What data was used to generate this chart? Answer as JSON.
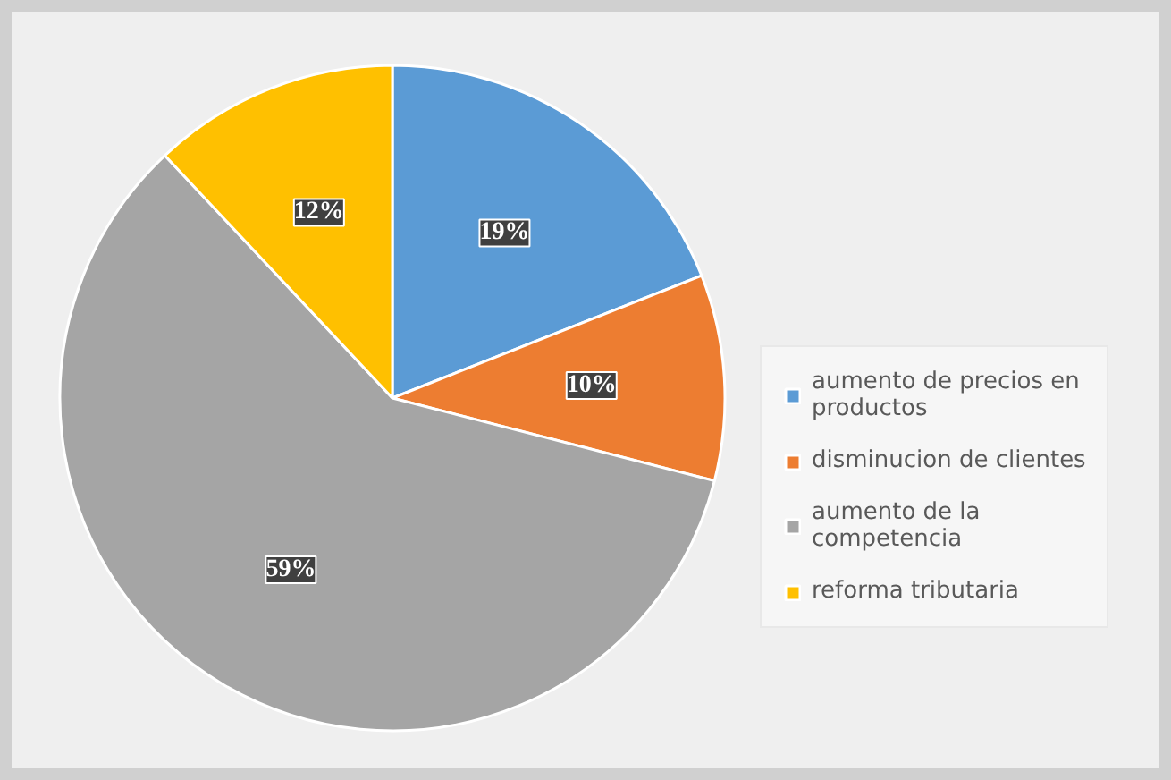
{
  "chart_data": {
    "type": "pie",
    "categories": [
      "aumento de precios en productos",
      "disminucion de clientes",
      "aumento de la competencia",
      "reforma tributaria"
    ],
    "values": [
      19,
      10,
      59,
      12
    ],
    "colors": [
      "#5b9bd5",
      "#ed7d31",
      "#a5a5a5",
      "#ffc000"
    ],
    "value_labels": [
      "19%",
      "10%",
      "59%",
      "12%"
    ],
    "legend": "right"
  }
}
